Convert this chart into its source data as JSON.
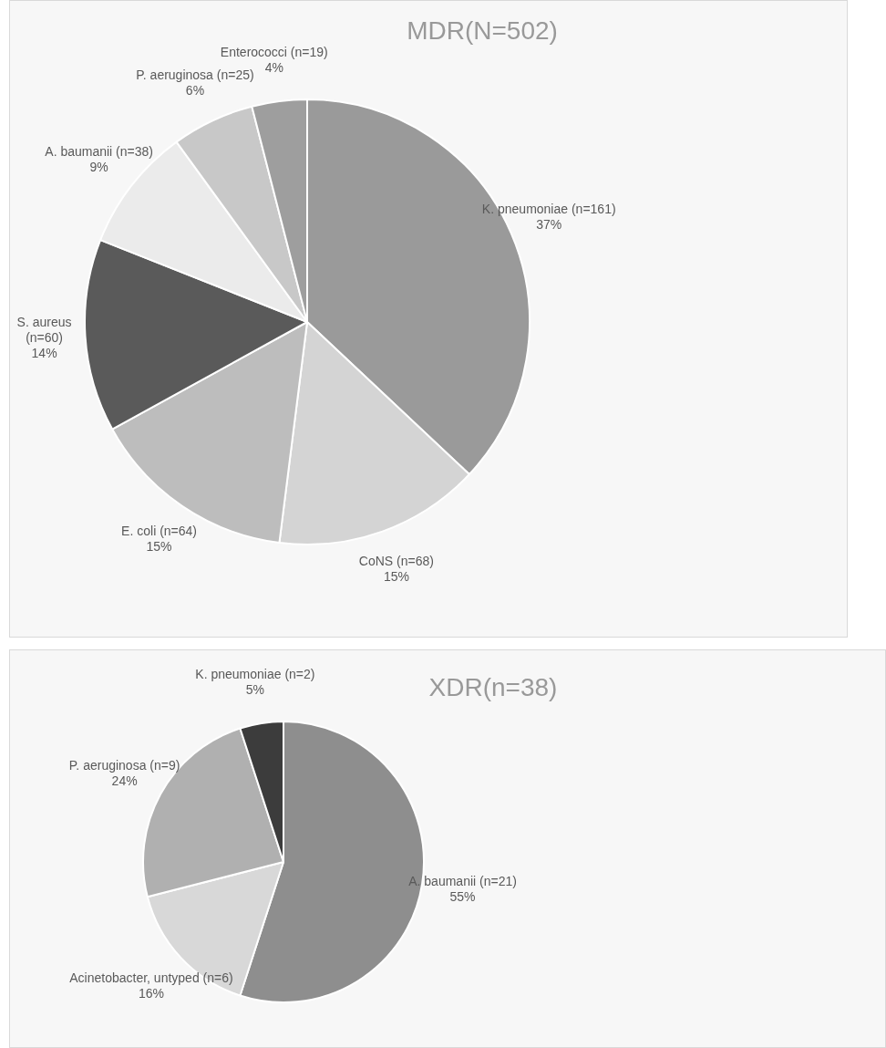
{
  "chart_data": [
    {
      "type": "pie",
      "title": "MDR(N=502)",
      "categories": [
        "K. pneumoniae (n=161)",
        "CoNS (n=68)",
        "E. coli (n=64)",
        "S. aureus (n=60)",
        "A. baumanii (n=38)",
        "P. aeruginosa (n=25)",
        "Enterococci (n=19)"
      ],
      "values": [
        37,
        15,
        15,
        14,
        9,
        6,
        4
      ],
      "value_labels": [
        "37%",
        "15%",
        "15%",
        "14%",
        "9%",
        "6%",
        "4%"
      ],
      "colors": [
        "#9a9a9a",
        "#d4d4d4",
        "#bdbdbd",
        "#5a5a5a",
        "#ebebeb",
        "#c8c8c8",
        "#9e9e9e"
      ]
    },
    {
      "type": "pie",
      "title": "XDR(n=38)",
      "categories": [
        "A. baumanii (n=21)",
        "Acinetobacter, untyped (n=6)",
        "P. aeruginosa (n=9)",
        "K. pneumoniae (n=2)"
      ],
      "values": [
        55,
        16,
        24,
        5
      ],
      "value_labels": [
        "55%",
        "16%",
        "24%",
        "5%"
      ],
      "colors": [
        "#8e8e8e",
        "#d8d8d8",
        "#b0b0b0",
        "#3c3c3c"
      ]
    }
  ]
}
